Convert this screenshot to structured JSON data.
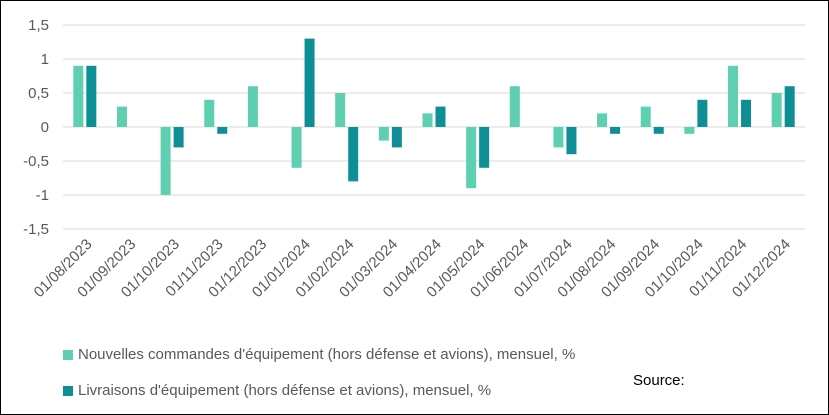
{
  "colors": {
    "new_orders": "#5ecfb1",
    "deliveries": "#0e8f95",
    "grid": "#d9d9d9",
    "text": "#595959"
  },
  "legend": {
    "new_orders": "Nouvelles commandes d'équipement (hors défense et avions), mensuel, %",
    "deliveries": "Livraisons d'équipement (hors défense et avions), mensuel, %"
  },
  "source_label": "Source:",
  "chart_data": {
    "type": "bar",
    "title": "",
    "xlabel": "",
    "ylabel": "",
    "ylim": [
      -1.5,
      1.5
    ],
    "y_ticks": [
      1.5,
      1,
      0.5,
      0,
      -0.5,
      -1,
      -1.5
    ],
    "y_tick_labels": [
      "1,5",
      "1",
      "0,5",
      "0",
      "-0,5",
      "-1",
      "-1,5"
    ],
    "grid": true,
    "legend_position": "bottom",
    "categories": [
      "01/08/2023",
      "01/09/2023",
      "01/10/2023",
      "01/11/2023",
      "01/12/2023",
      "01/01/2024",
      "01/02/2024",
      "01/03/2024",
      "01/04/2024",
      "01/05/2024",
      "01/06/2024",
      "01/07/2024",
      "01/08/2024",
      "01/09/2024",
      "01/10/2024",
      "01/11/2024",
      "01/12/2024"
    ],
    "series": [
      {
        "name": "Nouvelles commandes d'équipement (hors défense et avions), mensuel, %",
        "values": [
          0.9,
          0.3,
          -1.0,
          0.4,
          0.6,
          -0.6,
          0.5,
          -0.2,
          0.2,
          -0.9,
          0.6,
          -0.3,
          0.2,
          0.3,
          -0.1,
          0.9,
          0.5
        ]
      },
      {
        "name": "Livraisons d'équipement (hors défense et avions), mensuel, %",
        "values": [
          0.9,
          0.0,
          -0.3,
          -0.1,
          0.0,
          1.3,
          -0.8,
          -0.3,
          0.3,
          -0.6,
          0.0,
          -0.4,
          -0.1,
          -0.1,
          0.4,
          0.4,
          0.6
        ]
      }
    ]
  }
}
